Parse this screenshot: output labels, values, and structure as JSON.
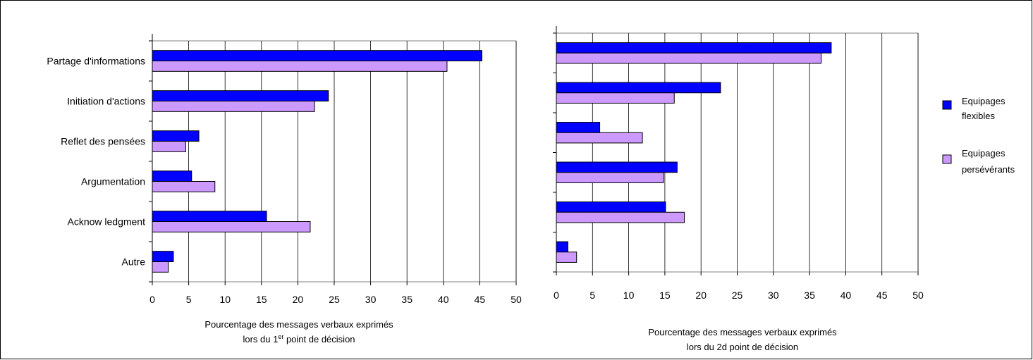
{
  "colors": {
    "flexible": "#0000ff",
    "perseverant": "#cc99ff",
    "grid": "#808080",
    "border": "#000000"
  },
  "legend": {
    "series1_line1": "Equipages",
    "series1_line2": "flexibles",
    "series2_line1": "Equipages",
    "series2_line2": "persévérants"
  },
  "chart_data": [
    {
      "type": "bar",
      "orientation": "horizontal",
      "categories": [
        "Partage d'informations",
        "Initiation d'actions",
        "Reflet des pensées",
        "Argumentation",
        "Acknow ledgment",
        "Autre"
      ],
      "series": [
        {
          "name": "Equipages flexibles",
          "values": [
            45.3,
            24.2,
            6.4,
            5.4,
            15.7,
            2.9
          ]
        },
        {
          "name": "Equipages persévérants",
          "values": [
            40.5,
            22.3,
            4.6,
            8.6,
            21.7,
            2.2
          ]
        }
      ],
      "xlim": [
        0,
        50
      ],
      "xticks": [
        "0",
        "5",
        "10",
        "15",
        "20",
        "25",
        "30",
        "35",
        "40",
        "45",
        "50"
      ],
      "xlabel_line1": "Pourcentage des messages verbaux exprimés",
      "xlabel_line2_pre": "lors du 1",
      "xlabel_line2_sup": "er",
      "xlabel_line2_post": " point de décision",
      "grid": true
    },
    {
      "type": "bar",
      "orientation": "horizontal",
      "categories": [
        "",
        "",
        "",
        "",
        "",
        ""
      ],
      "series": [
        {
          "name": "Equipages flexibles",
          "values": [
            38.0,
            22.7,
            6.0,
            16.7,
            15.1,
            1.6
          ]
        },
        {
          "name": "Equipages persévérants",
          "values": [
            36.6,
            16.3,
            11.9,
            14.8,
            17.7,
            2.8
          ]
        }
      ],
      "xlim": [
        0,
        50
      ],
      "xticks": [
        "0",
        "5",
        "10",
        "15",
        "20",
        "25",
        "30",
        "35",
        "40",
        "45",
        "50"
      ],
      "xlabel_line1": "Pourcentage des messages verbaux exprimés",
      "xlabel_line2": "lors du 2d point de décision",
      "grid": true
    }
  ]
}
